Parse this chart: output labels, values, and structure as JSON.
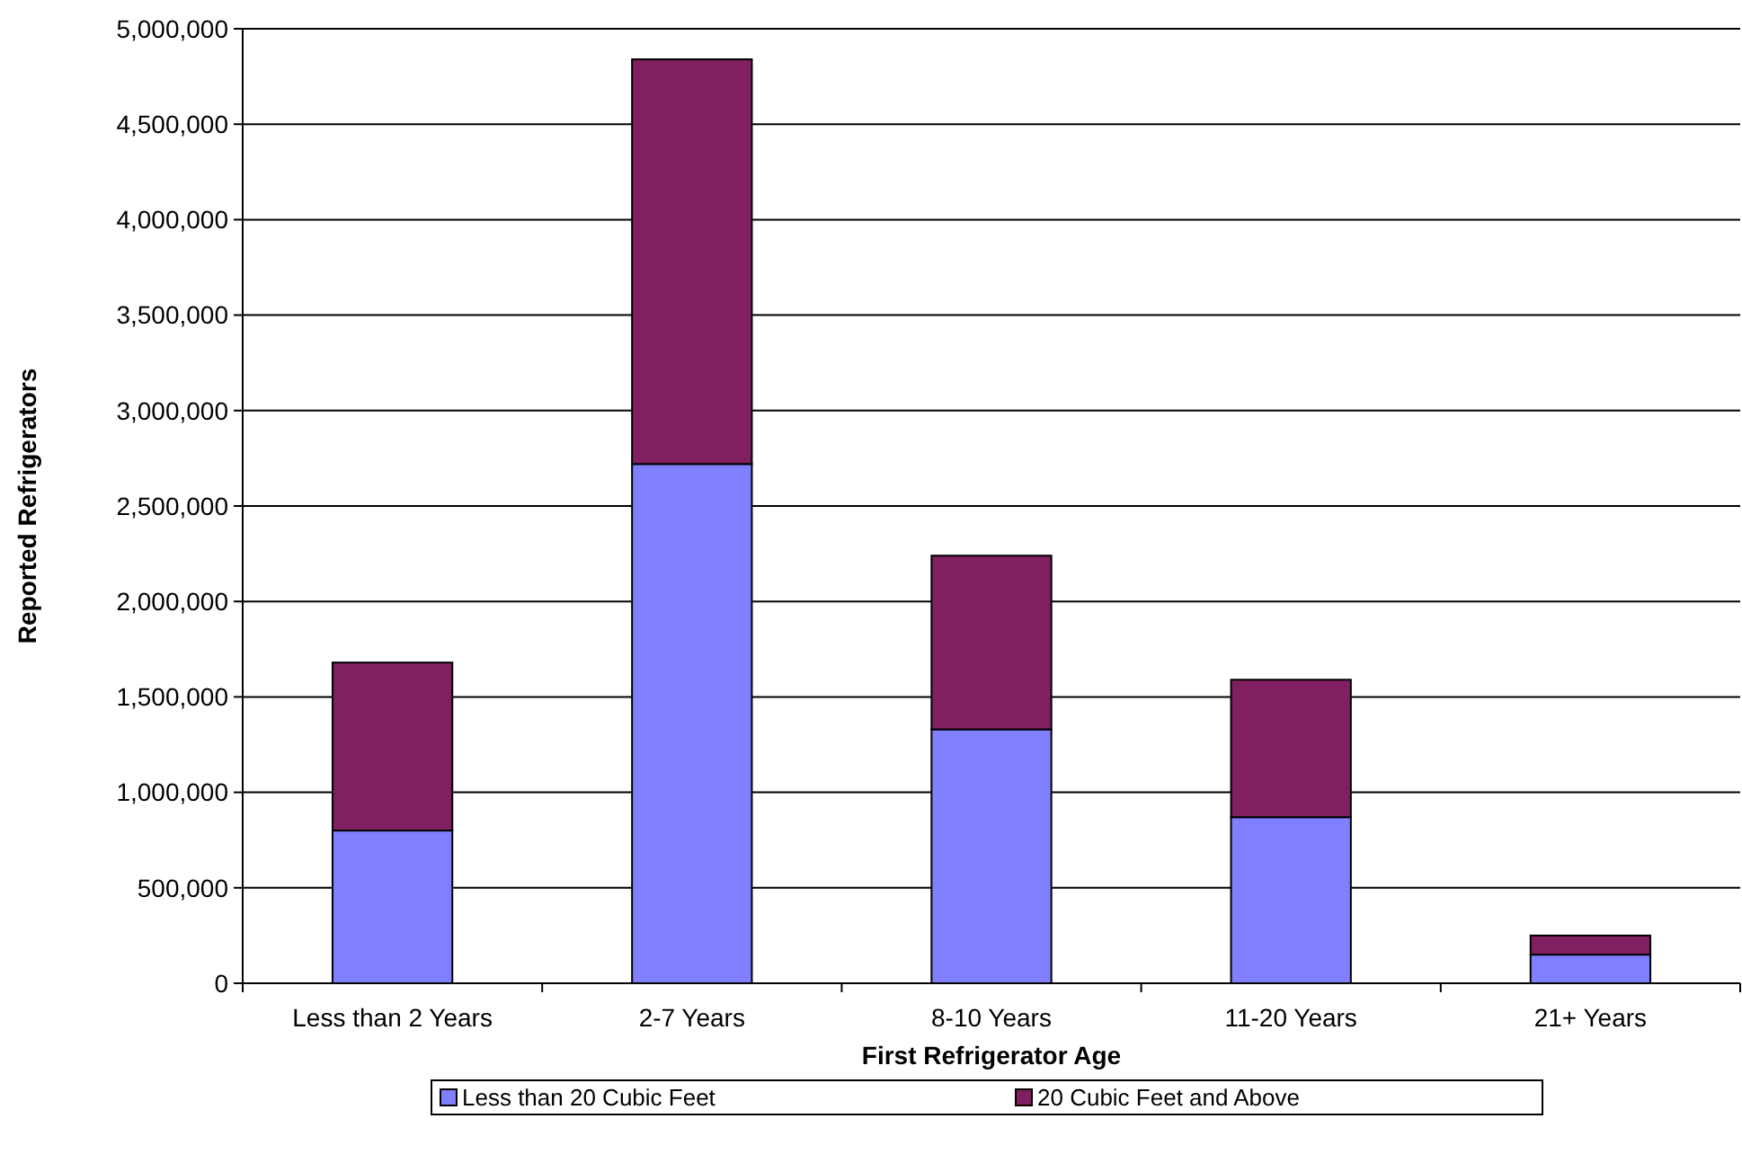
{
  "chart_data": {
    "type": "bar",
    "stacked": true,
    "xlabel": "First Refrigerator Age",
    "ylabel": "Reported Refrigerators",
    "categories": [
      "Less than 2 Years",
      "2-7 Years",
      "8-10 Years",
      "11-20 Years",
      "21+ Years"
    ],
    "series": [
      {
        "name": "Less than 20 Cubic Feet",
        "color": "#8080ff",
        "values": [
          800000,
          2720000,
          1330000,
          870000,
          150000
        ]
      },
      {
        "name": "20 Cubic Feet and Above",
        "color": "#802060",
        "values": [
          880000,
          2120000,
          910000,
          720000,
          100000
        ]
      }
    ],
    "ylim": [
      0,
      5000000
    ],
    "yticks": [
      {
        "value": 0,
        "label": "0"
      },
      {
        "value": 500000,
        "label": "500,000"
      },
      {
        "value": 1000000,
        "label": "1,000,000"
      },
      {
        "value": 1500000,
        "label": "1,500,000"
      },
      {
        "value": 2000000,
        "label": "2,000,000"
      },
      {
        "value": 2500000,
        "label": "2,500,000"
      },
      {
        "value": 3000000,
        "label": "3,000,000"
      },
      {
        "value": 3500000,
        "label": "3,500,000"
      },
      {
        "value": 4000000,
        "label": "4,000,000"
      },
      {
        "value": 4500000,
        "label": "4,500,000"
      },
      {
        "value": 5000000,
        "label": "5,000,000"
      }
    ],
    "grid": "y",
    "legend": "bottom"
  }
}
